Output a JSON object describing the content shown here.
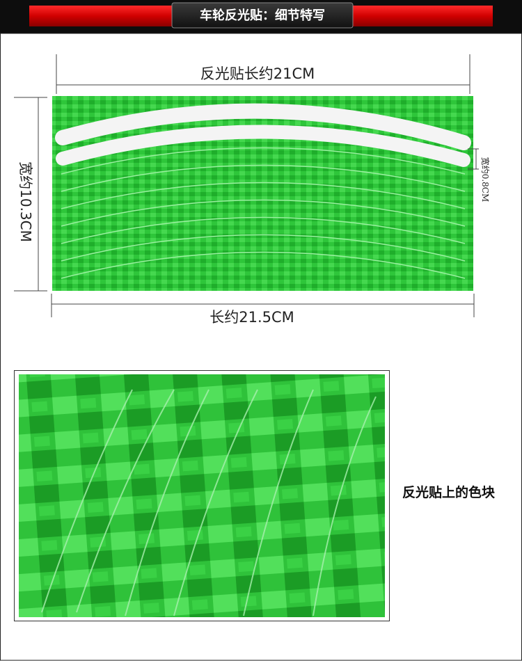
{
  "header": {
    "title": "车轮反光贴：细节特写"
  },
  "diagram": {
    "top_length": "反光贴长约21CM",
    "height": "宽约10.3CM",
    "strip_width": "宽约0.8CM",
    "bottom_length": "长约21.5CM"
  },
  "closeup": {
    "caption": "反光贴上的色块"
  }
}
